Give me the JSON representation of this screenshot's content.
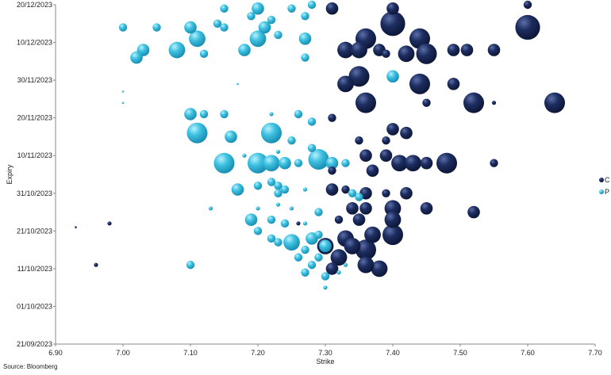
{
  "chart_data": {
    "type": "scatter",
    "subtype": "bubble",
    "xlabel": "Strike",
    "ylabel": "Expiry",
    "xlim": [
      6.9,
      7.7
    ],
    "x_ticks": [
      "6.90",
      "7.00",
      "7.10",
      "7.20",
      "7.30",
      "7.40",
      "7.50",
      "7.60",
      "7.70"
    ],
    "ylim": [
      "2023-09-21",
      "2023-12-20"
    ],
    "y_ticks": [
      "21/09/2023",
      "01/10/2023",
      "11/10/2023",
      "21/10/2023",
      "31/10/2023",
      "10/11/2023",
      "20/11/2023",
      "30/11/2023",
      "10/12/2023",
      "20/12/2023"
    ],
    "grid": false,
    "legend_position": "right",
    "series": [
      {
        "name": "C",
        "color": "#1a2a5a",
        "points": [
          {
            "x": 7.31,
            "y": "2023-12-19",
            "s": 3
          },
          {
            "x": 7.4,
            "y": "2023-12-19",
            "s": 3
          },
          {
            "x": 7.6,
            "y": "2023-12-20",
            "s": 2
          },
          {
            "x": 7.4,
            "y": "2023-12-15",
            "s": 6
          },
          {
            "x": 7.6,
            "y": "2023-12-14",
            "s": 6
          },
          {
            "x": 7.36,
            "y": "2023-12-11",
            "s": 5
          },
          {
            "x": 7.44,
            "y": "2023-12-11",
            "s": 5
          },
          {
            "x": 7.33,
            "y": "2023-12-08",
            "s": 4
          },
          {
            "x": 7.35,
            "y": "2023-12-08",
            "s": 4
          },
          {
            "x": 7.38,
            "y": "2023-12-08",
            "s": 3
          },
          {
            "x": 7.42,
            "y": "2023-12-07",
            "s": 4
          },
          {
            "x": 7.45,
            "y": "2023-12-07",
            "s": 5
          },
          {
            "x": 7.49,
            "y": "2023-12-08",
            "s": 3
          },
          {
            "x": 7.51,
            "y": "2023-12-08",
            "s": 3
          },
          {
            "x": 7.55,
            "y": "2023-12-08",
            "s": 3
          },
          {
            "x": 7.39,
            "y": "2023-12-07",
            "s": 2
          },
          {
            "x": 7.35,
            "y": "2023-12-01",
            "s": 5
          },
          {
            "x": 7.33,
            "y": "2023-11-29",
            "s": 4
          },
          {
            "x": 7.44,
            "y": "2023-11-29",
            "s": 5
          },
          {
            "x": 7.49,
            "y": "2023-11-29",
            "s": 3
          },
          {
            "x": 7.36,
            "y": "2023-11-24",
            "s": 5
          },
          {
            "x": 7.52,
            "y": "2023-11-24",
            "s": 5
          },
          {
            "x": 7.64,
            "y": "2023-11-24",
            "s": 5
          },
          {
            "x": 7.45,
            "y": "2023-11-24",
            "s": 2
          },
          {
            "x": 7.55,
            "y": "2023-11-24",
            "s": 1
          },
          {
            "x": 7.31,
            "y": "2023-11-20",
            "s": 2
          },
          {
            "x": 7.4,
            "y": "2023-11-17",
            "s": 3
          },
          {
            "x": 7.42,
            "y": "2023-11-16",
            "s": 3
          },
          {
            "x": 7.35,
            "y": "2023-11-14",
            "s": 2
          },
          {
            "x": 7.39,
            "y": "2023-11-14",
            "s": 2
          },
          {
            "x": 7.36,
            "y": "2023-11-10",
            "s": 3
          },
          {
            "x": 7.39,
            "y": "2023-11-10",
            "s": 3
          },
          {
            "x": 7.41,
            "y": "2023-11-08",
            "s": 4
          },
          {
            "x": 7.43,
            "y": "2023-11-08",
            "s": 4
          },
          {
            "x": 7.48,
            "y": "2023-11-08",
            "s": 5
          },
          {
            "x": 7.45,
            "y": "2023-11-08",
            "s": 3
          },
          {
            "x": 7.55,
            "y": "2023-11-08",
            "s": 2
          },
          {
            "x": 7.31,
            "y": "2023-11-06",
            "s": 2
          },
          {
            "x": 7.37,
            "y": "2023-11-06",
            "s": 3
          },
          {
            "x": 7.31,
            "y": "2023-11-01",
            "s": 3
          },
          {
            "x": 7.33,
            "y": "2023-11-01",
            "s": 2
          },
          {
            "x": 7.36,
            "y": "2023-10-31",
            "s": 3
          },
          {
            "x": 7.39,
            "y": "2023-10-31",
            "s": 2
          },
          {
            "x": 7.42,
            "y": "2023-10-31",
            "s": 3
          },
          {
            "x": 7.34,
            "y": "2023-10-27",
            "s": 3
          },
          {
            "x": 7.36,
            "y": "2023-10-27",
            "s": 3
          },
          {
            "x": 7.4,
            "y": "2023-10-27",
            "s": 4
          },
          {
            "x": 7.45,
            "y": "2023-10-27",
            "s": 3
          },
          {
            "x": 7.52,
            "y": "2023-10-26",
            "s": 3
          },
          {
            "x": 7.32,
            "y": "2023-10-24",
            "s": 2
          },
          {
            "x": 7.35,
            "y": "2023-10-24",
            "s": 3
          },
          {
            "x": 7.4,
            "y": "2023-10-24",
            "s": 4
          },
          {
            "x": 7.33,
            "y": "2023-10-19",
            "s": 4
          },
          {
            "x": 7.37,
            "y": "2023-10-20",
            "s": 4
          },
          {
            "x": 7.4,
            "y": "2023-10-20",
            "s": 5
          },
          {
            "x": 7.3,
            "y": "2023-10-17",
            "s": 4
          },
          {
            "x": 7.34,
            "y": "2023-10-17",
            "s": 4
          },
          {
            "x": 7.36,
            "y": "2023-10-16",
            "s": 5
          },
          {
            "x": 7.32,
            "y": "2023-10-14",
            "s": 4
          },
          {
            "x": 7.38,
            "y": "2023-10-11",
            "s": 4
          },
          {
            "x": 7.36,
            "y": "2023-10-12",
            "s": 4
          },
          {
            "x": 7.31,
            "y": "2023-10-11",
            "s": 3
          },
          {
            "x": 6.98,
            "y": "2023-10-23",
            "s": 1
          },
          {
            "x": 6.96,
            "y": "2023-10-12",
            "s": 1
          },
          {
            "x": 6.93,
            "y": "2023-10-22",
            "s": 0.5
          },
          {
            "x": 7.26,
            "y": "2023-10-23",
            "s": 1
          }
        ]
      },
      {
        "name": "P",
        "color": "#3ec1e0",
        "points": [
          {
            "x": 7.15,
            "y": "2023-12-19",
            "s": 2
          },
          {
            "x": 7.2,
            "y": "2023-12-19",
            "s": 3
          },
          {
            "x": 7.25,
            "y": "2023-12-19",
            "s": 2
          },
          {
            "x": 7.28,
            "y": "2023-12-20",
            "s": 2
          },
          {
            "x": 7.19,
            "y": "2023-12-17",
            "s": 2
          },
          {
            "x": 7.22,
            "y": "2023-12-16",
            "s": 2
          },
          {
            "x": 7.27,
            "y": "2023-12-17",
            "s": 2
          },
          {
            "x": 7.0,
            "y": "2023-12-14",
            "s": 2
          },
          {
            "x": 7.05,
            "y": "2023-12-14",
            "s": 2
          },
          {
            "x": 7.1,
            "y": "2023-12-14",
            "s": 3
          },
          {
            "x": 7.14,
            "y": "2023-12-15",
            "s": 2
          },
          {
            "x": 7.15,
            "y": "2023-12-14",
            "s": 2
          },
          {
            "x": 7.21,
            "y": "2023-12-14",
            "s": 3
          },
          {
            "x": 7.11,
            "y": "2023-12-11",
            "s": 4
          },
          {
            "x": 7.2,
            "y": "2023-12-11",
            "s": 4
          },
          {
            "x": 7.23,
            "y": "2023-12-12",
            "s": 2
          },
          {
            "x": 7.27,
            "y": "2023-12-11",
            "s": 3
          },
          {
            "x": 7.03,
            "y": "2023-12-08",
            "s": 3
          },
          {
            "x": 7.08,
            "y": "2023-12-08",
            "s": 4
          },
          {
            "x": 7.12,
            "y": "2023-12-07",
            "s": 2
          },
          {
            "x": 7.18,
            "y": "2023-12-08",
            "s": 3
          },
          {
            "x": 7.02,
            "y": "2023-12-06",
            "s": 3
          },
          {
            "x": 7.27,
            "y": "2023-12-06",
            "s": 2
          },
          {
            "x": 7.4,
            "y": "2023-12-01",
            "s": 3
          },
          {
            "x": 7.17,
            "y": "2023-11-29",
            "s": 0.5
          },
          {
            "x": 7.0,
            "y": "2023-11-27",
            "s": 0.5
          },
          {
            "x": 7.0,
            "y": "2023-11-24",
            "s": 0.5
          },
          {
            "x": 7.1,
            "y": "2023-11-21",
            "s": 3
          },
          {
            "x": 7.12,
            "y": "2023-11-21",
            "s": 2
          },
          {
            "x": 7.15,
            "y": "2023-11-21",
            "s": 2
          },
          {
            "x": 7.22,
            "y": "2023-11-21",
            "s": 1
          },
          {
            "x": 7.26,
            "y": "2023-11-21",
            "s": 2
          },
          {
            "x": 7.28,
            "y": "2023-11-19",
            "s": 2
          },
          {
            "x": 7.11,
            "y": "2023-11-16",
            "s": 5
          },
          {
            "x": 7.16,
            "y": "2023-11-15",
            "s": 3
          },
          {
            "x": 7.22,
            "y": "2023-11-16",
            "s": 5
          },
          {
            "x": 7.25,
            "y": "2023-11-14",
            "s": 2
          },
          {
            "x": 7.28,
            "y": "2023-11-12",
            "s": 2
          },
          {
            "x": 7.23,
            "y": "2023-11-11",
            "s": 1
          },
          {
            "x": 7.15,
            "y": "2023-11-08",
            "s": 5
          },
          {
            "x": 7.2,
            "y": "2023-11-08",
            "s": 5
          },
          {
            "x": 7.22,
            "y": "2023-11-08",
            "s": 4
          },
          {
            "x": 7.24,
            "y": "2023-11-08",
            "s": 3
          },
          {
            "x": 7.26,
            "y": "2023-11-08",
            "s": 2
          },
          {
            "x": 7.29,
            "y": "2023-11-09",
            "s": 5
          },
          {
            "x": 7.31,
            "y": "2023-11-08",
            "s": 3
          },
          {
            "x": 7.33,
            "y": "2023-11-08",
            "s": 2
          },
          {
            "x": 7.18,
            "y": "2023-11-10",
            "s": 1
          },
          {
            "x": 7.22,
            "y": "2023-11-03",
            "s": 2
          },
          {
            "x": 7.2,
            "y": "2023-11-02",
            "s": 2
          },
          {
            "x": 7.23,
            "y": "2023-11-02",
            "s": 2
          },
          {
            "x": 7.17,
            "y": "2023-11-01",
            "s": 3
          },
          {
            "x": 7.23,
            "y": "2023-10-31",
            "s": 2
          },
          {
            "x": 7.24,
            "y": "2023-11-01",
            "s": 2
          },
          {
            "x": 7.27,
            "y": "2023-11-01",
            "s": 1
          },
          {
            "x": 7.34,
            "y": "2023-10-31",
            "s": 2
          },
          {
            "x": 7.35,
            "y": "2023-10-30",
            "s": 2
          },
          {
            "x": 7.13,
            "y": "2023-10-27",
            "s": 1
          },
          {
            "x": 7.2,
            "y": "2023-10-27",
            "s": 1
          },
          {
            "x": 7.23,
            "y": "2023-10-28",
            "s": 1
          },
          {
            "x": 7.25,
            "y": "2023-10-27",
            "s": 1
          },
          {
            "x": 7.19,
            "y": "2023-10-24",
            "s": 3
          },
          {
            "x": 7.22,
            "y": "2023-10-24",
            "s": 2
          },
          {
            "x": 7.24,
            "y": "2023-10-23",
            "s": 2
          },
          {
            "x": 7.29,
            "y": "2023-10-26",
            "s": 2
          },
          {
            "x": 7.27,
            "y": "2023-10-23",
            "s": 1
          },
          {
            "x": 7.2,
            "y": "2023-10-21",
            "s": 2
          },
          {
            "x": 7.22,
            "y": "2023-10-19",
            "s": 2
          },
          {
            "x": 7.25,
            "y": "2023-10-18",
            "s": 4
          },
          {
            "x": 7.28,
            "y": "2023-10-19",
            "s": 3
          },
          {
            "x": 7.29,
            "y": "2023-10-20",
            "s": 2
          },
          {
            "x": 7.3,
            "y": "2023-10-17",
            "s": 3
          },
          {
            "x": 7.23,
            "y": "2023-10-18",
            "s": 2
          },
          {
            "x": 7.26,
            "y": "2023-10-14",
            "s": 2
          },
          {
            "x": 7.27,
            "y": "2023-10-16",
            "s": 2
          },
          {
            "x": 7.28,
            "y": "2023-10-12",
            "s": 2
          },
          {
            "x": 7.29,
            "y": "2023-10-14",
            "s": 2
          },
          {
            "x": 7.3,
            "y": "2023-10-09",
            "s": 2
          },
          {
            "x": 7.3,
            "y": "2023-10-06",
            "s": 1
          },
          {
            "x": 7.27,
            "y": "2023-10-10",
            "s": 2
          },
          {
            "x": 7.1,
            "y": "2023-10-12",
            "s": 2
          },
          {
            "x": 7.32,
            "y": "2023-10-10",
            "s": 1
          },
          {
            "x": 7.33,
            "y": "2023-10-12",
            "s": 1
          }
        ]
      }
    ]
  },
  "legend": [
    {
      "label": "C",
      "color": "#1a2a5a"
    },
    {
      "label": "P",
      "color": "#3ec1e0"
    }
  ],
  "source_text": "Source: Bloomberg"
}
